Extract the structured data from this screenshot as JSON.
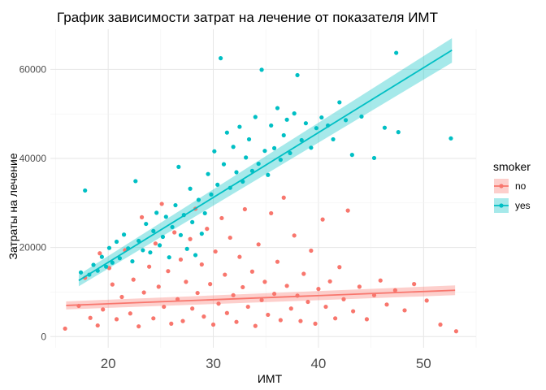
{
  "chart_data": {
    "type": "scatter",
    "title": "График зависимости затрат на лечение от показателя ИМТ",
    "xlabel": "ИМТ",
    "ylabel": "Затраты на лечение",
    "xlim": [
      14.5,
      55
    ],
    "ylim": [
      -2500,
      69000
    ],
    "x_ticks": [
      20,
      30,
      40,
      50
    ],
    "y_ticks": [
      0,
      20000,
      40000,
      60000
    ],
    "grid": true,
    "legend": {
      "title": "smoker",
      "placement": "right"
    },
    "series": [
      {
        "name": "no",
        "color": "#F8766D",
        "trend": {
          "x": [
            16,
            53
          ],
          "y": [
            7000,
            10400
          ],
          "se_low": [
            6100,
            9300
          ],
          "se_high": [
            7900,
            11500
          ]
        },
        "points": [
          [
            15.9,
            1800
          ],
          [
            17.2,
            6900
          ],
          [
            17.8,
            13200
          ],
          [
            18.3,
            4200
          ],
          [
            19.0,
            2500
          ],
          [
            19.2,
            18700
          ],
          [
            19.5,
            6100
          ],
          [
            20.1,
            15400
          ],
          [
            20.4,
            11700
          ],
          [
            20.8,
            3900
          ],
          [
            21.3,
            8900
          ],
          [
            21.6,
            19400
          ],
          [
            22.1,
            5200
          ],
          [
            22.4,
            12800
          ],
          [
            22.9,
            2300
          ],
          [
            23.2,
            26800
          ],
          [
            23.4,
            9900
          ],
          [
            23.9,
            15700
          ],
          [
            24.3,
            4100
          ],
          [
            24.5,
            20900
          ],
          [
            24.8,
            11200
          ],
          [
            25.1,
            29800
          ],
          [
            25.3,
            6700
          ],
          [
            25.7,
            14700
          ],
          [
            26.0,
            2900
          ],
          [
            26.3,
            23400
          ],
          [
            26.6,
            8400
          ],
          [
            26.9,
            17300
          ],
          [
            27.1,
            3500
          ],
          [
            27.4,
            12300
          ],
          [
            27.8,
            21900
          ],
          [
            28.0,
            6300
          ],
          [
            28.3,
            28700
          ],
          [
            28.5,
            9800
          ],
          [
            28.9,
            16200
          ],
          [
            29.1,
            4500
          ],
          [
            29.4,
            24200
          ],
          [
            29.7,
            11800
          ],
          [
            30.0,
            2700
          ],
          [
            30.2,
            19100
          ],
          [
            30.5,
            7400
          ],
          [
            30.8,
            26600
          ],
          [
            31.1,
            13900
          ],
          [
            31.3,
            5300
          ],
          [
            31.6,
            22200
          ],
          [
            31.9,
            9300
          ],
          [
            32.2,
            3300
          ],
          [
            32.5,
            17900
          ],
          [
            32.8,
            11100
          ],
          [
            33.0,
            28600
          ],
          [
            33.3,
            6700
          ],
          [
            33.7,
            14600
          ],
          [
            34.0,
            2400
          ],
          [
            34.3,
            20700
          ],
          [
            34.6,
            8200
          ],
          [
            34.9,
            12300
          ],
          [
            35.2,
            4900
          ],
          [
            35.5,
            27700
          ],
          [
            35.8,
            9600
          ],
          [
            36.1,
            16800
          ],
          [
            36.4,
            3700
          ],
          [
            36.7,
            31200
          ],
          [
            37.0,
            11400
          ],
          [
            37.4,
            6300
          ],
          [
            37.7,
            22700
          ],
          [
            38.0,
            9200
          ],
          [
            38.3,
            3500
          ],
          [
            38.6,
            14100
          ],
          [
            39.0,
            7800
          ],
          [
            39.3,
            19300
          ],
          [
            39.7,
            2900
          ],
          [
            40.0,
            10700
          ],
          [
            40.4,
            26300
          ],
          [
            40.7,
            6700
          ],
          [
            41.1,
            12400
          ],
          [
            41.6,
            4100
          ],
          [
            42.0,
            15600
          ],
          [
            42.4,
            8400
          ],
          [
            42.8,
            28300
          ],
          [
            43.3,
            5700
          ],
          [
            43.9,
            11200
          ],
          [
            44.6,
            3900
          ],
          [
            45.3,
            9300
          ],
          [
            45.9,
            12600
          ],
          [
            46.5,
            7200
          ],
          [
            47.3,
            10400
          ],
          [
            48.2,
            5900
          ],
          [
            49.1,
            11800
          ],
          [
            50.3,
            8100
          ],
          [
            51.6,
            2700
          ],
          [
            53.1,
            1200
          ]
        ]
      },
      {
        "name": "yes",
        "color": "#00BFC4",
        "trend": {
          "x": [
            17.2,
            52.7
          ],
          "y": [
            12600,
            64300
          ],
          "se_low": [
            11300,
            61500
          ],
          "se_high": [
            13900,
            67000
          ]
        },
        "points": [
          [
            17.4,
            14400
          ],
          [
            17.8,
            32800
          ],
          [
            18.2,
            13900
          ],
          [
            18.6,
            16100
          ],
          [
            19.0,
            14800
          ],
          [
            19.4,
            17900
          ],
          [
            19.8,
            15700
          ],
          [
            20.1,
            19900
          ],
          [
            20.4,
            16600
          ],
          [
            20.8,
            21300
          ],
          [
            21.1,
            17600
          ],
          [
            21.5,
            22900
          ],
          [
            21.9,
            19800
          ],
          [
            22.3,
            16900
          ],
          [
            22.6,
            34900
          ],
          [
            22.9,
            21500
          ],
          [
            23.3,
            19400
          ],
          [
            23.6,
            25300
          ],
          [
            24.0,
            18900
          ],
          [
            24.3,
            23700
          ],
          [
            24.6,
            27800
          ],
          [
            24.9,
            20500
          ],
          [
            25.2,
            22400
          ],
          [
            25.5,
            26900
          ],
          [
            25.8,
            17800
          ],
          [
            26.1,
            24600
          ],
          [
            26.4,
            29500
          ],
          [
            26.7,
            38100
          ],
          [
            26.9,
            22800
          ],
          [
            27.2,
            27300
          ],
          [
            27.5,
            19700
          ],
          [
            27.8,
            33200
          ],
          [
            28.0,
            25700
          ],
          [
            28.3,
            18300
          ],
          [
            28.6,
            30700
          ],
          [
            28.9,
            23100
          ],
          [
            29.2,
            27700
          ],
          [
            29.5,
            36500
          ],
          [
            29.8,
            31900
          ],
          [
            30.1,
            41600
          ],
          [
            30.4,
            34100
          ],
          [
            30.7,
            62500
          ],
          [
            31.0,
            38700
          ],
          [
            31.3,
            45800
          ],
          [
            31.6,
            33400
          ],
          [
            31.9,
            42600
          ],
          [
            32.2,
            36900
          ],
          [
            32.5,
            47100
          ],
          [
            32.8,
            34800
          ],
          [
            33.1,
            40200
          ],
          [
            33.4,
            44300
          ],
          [
            33.7,
            37200
          ],
          [
            34.0,
            49300
          ],
          [
            34.3,
            38800
          ],
          [
            34.6,
            59900
          ],
          [
            34.9,
            41700
          ],
          [
            35.2,
            36300
          ],
          [
            35.5,
            47400
          ],
          [
            35.8,
            42300
          ],
          [
            36.1,
            51300
          ],
          [
            36.4,
            39700
          ],
          [
            36.7,
            45200
          ],
          [
            37.0,
            48700
          ],
          [
            37.3,
            41200
          ],
          [
            37.7,
            50100
          ],
          [
            38.0,
            58700
          ],
          [
            38.4,
            44100
          ],
          [
            38.8,
            47900
          ],
          [
            39.3,
            42400
          ],
          [
            39.8,
            46800
          ],
          [
            40.3,
            49200
          ],
          [
            40.9,
            47400
          ],
          [
            41.4,
            44300
          ],
          [
            42.0,
            52600
          ],
          [
            42.6,
            48600
          ],
          [
            43.2,
            40800
          ],
          [
            44.1,
            49400
          ],
          [
            45.3,
            40100
          ],
          [
            46.3,
            46900
          ],
          [
            47.4,
            63700
          ],
          [
            47.6,
            45900
          ],
          [
            52.6,
            44500
          ]
        ]
      }
    ]
  }
}
